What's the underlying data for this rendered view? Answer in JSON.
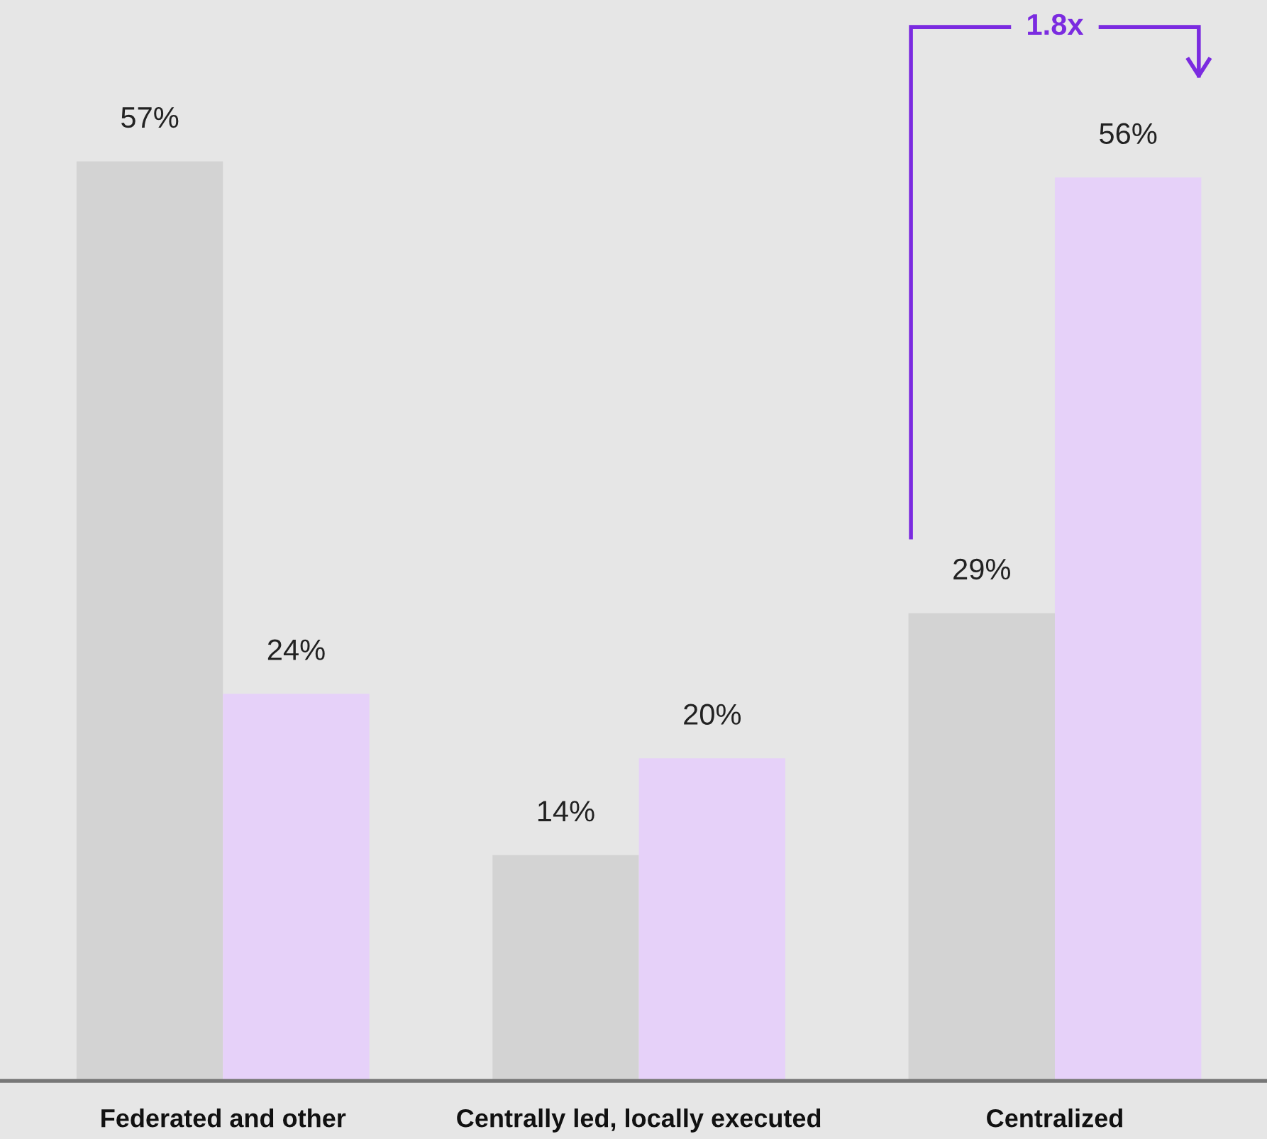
{
  "chart_data": {
    "type": "bar",
    "categories": [
      "Federated and other",
      "Centrally led, locally executed",
      "Centralized"
    ],
    "series": [
      {
        "color": "#d3d3d3",
        "values": [
          57,
          14,
          29
        ],
        "value_labels": [
          "57%",
          "14%",
          "29%"
        ]
      },
      {
        "color": "#e6d1f9",
        "values": [
          24,
          20,
          56
        ],
        "value_labels": [
          "24%",
          "20%",
          "56%"
        ]
      }
    ],
    "ylim": [
      0,
      67
    ],
    "tick_labels": "x",
    "grid": false,
    "annotations": [
      "1.8x"
    ]
  }
}
